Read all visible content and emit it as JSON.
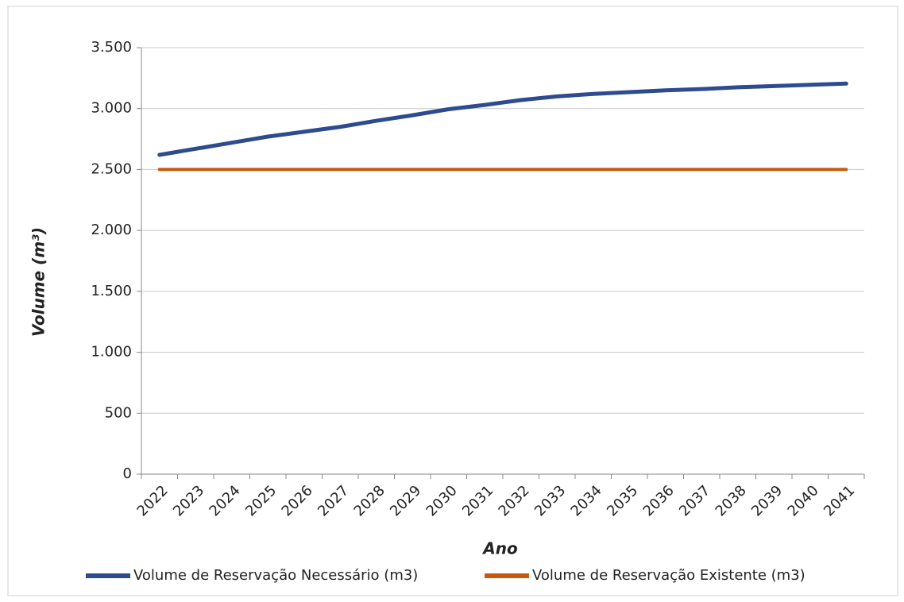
{
  "chart_data": {
    "type": "line",
    "x_label": "Ano",
    "y_label": "Volume (m³)",
    "categories": [
      "2022",
      "2023",
      "2024",
      "2025",
      "2026",
      "2027",
      "2028",
      "2029",
      "2030",
      "2031",
      "2032",
      "2033",
      "2034",
      "2035",
      "2036",
      "2037",
      "2038",
      "2039",
      "2040",
      "2041"
    ],
    "series": [
      {
        "name": "Volume de Reservação Necessário (m3)",
        "color": "#2e4b8f",
        "values": [
          2620,
          2670,
          2720,
          2770,
          2810,
          2850,
          2900,
          2945,
          2995,
          3030,
          3070,
          3100,
          3120,
          3135,
          3150,
          3160,
          3175,
          3185,
          3195,
          3205
        ]
      },
      {
        "name": "Volume de Reservação Existente (m3)",
        "color": "#c55a11",
        "values": [
          2500,
          2500,
          2500,
          2500,
          2500,
          2500,
          2500,
          2500,
          2500,
          2500,
          2500,
          2500,
          2500,
          2500,
          2500,
          2500,
          2500,
          2500,
          2500,
          2500
        ]
      }
    ],
    "ylim": [
      0,
      3500
    ],
    "yticks": [
      0,
      500,
      {
        "value": 1000,
        "label": "1.000"
      },
      {
        "value": 1500,
        "label": "1.500"
      },
      {
        "value": 2000,
        "label": "2.000"
      },
      {
        "value": 2500,
        "label": "2.500"
      },
      {
        "value": 3000,
        "label": "3.000"
      },
      {
        "value": 3500,
        "label": "3.500"
      }
    ],
    "grid": true,
    "legend": "bottom"
  }
}
